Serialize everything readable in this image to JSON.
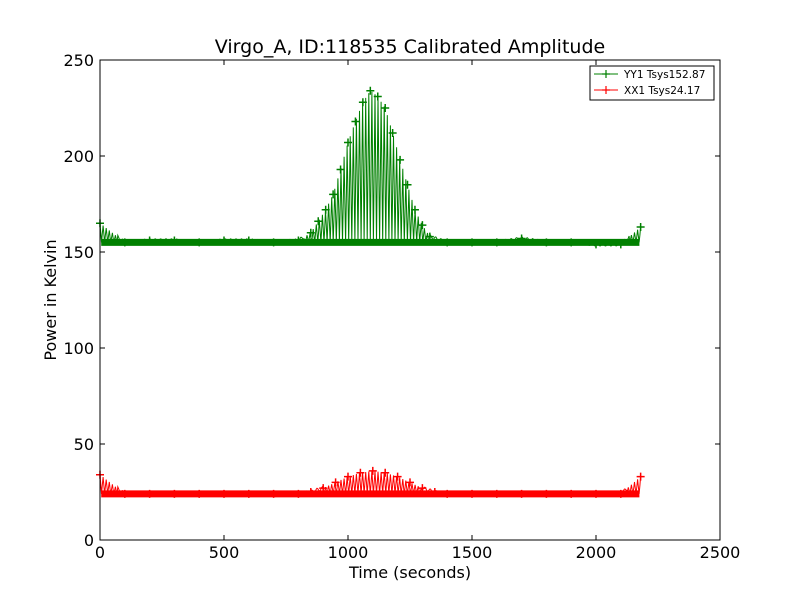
{
  "chart_data": {
    "type": "line",
    "title": "Virgo_A, ID:118535 Calibrated Amplitude",
    "xlabel": "Time (seconds)",
    "ylabel": "Power in Kelvin",
    "xlim": [
      0,
      2500
    ],
    "ylim": [
      0,
      250
    ],
    "x_ticks": [
      0,
      500,
      1000,
      1500,
      2000,
      2500
    ],
    "y_ticks": [
      0,
      50,
      100,
      150,
      200,
      250
    ],
    "x_tick_labels": [
      "0",
      "500",
      "1000",
      "1500",
      "2000",
      "2500"
    ],
    "y_tick_labels": [
      "0",
      "50",
      "100",
      "150",
      "200",
      "250"
    ],
    "grid": false,
    "legend_position": "top-right",
    "marker": "+",
    "series": [
      {
        "name": "YY1 Tsys152.87",
        "color": "#008000",
        "baseline": 155,
        "x": [
          0,
          100,
          200,
          300,
          400,
          500,
          600,
          700,
          800,
          850,
          880,
          910,
          940,
          970,
          1000,
          1030,
          1060,
          1090,
          1120,
          1150,
          1180,
          1210,
          1240,
          1270,
          1300,
          1330,
          1400,
          1500,
          1600,
          1700,
          1800,
          1900,
          2000,
          2100,
          2180
        ],
        "y": [
          165,
          155,
          156,
          156,
          155,
          156,
          156,
          155,
          156,
          160,
          166,
          172,
          180,
          193,
          207,
          218,
          228,
          234,
          231,
          225,
          212,
          198,
          185,
          172,
          164,
          158,
          155,
          155,
          155,
          157,
          155,
          155,
          154,
          154,
          163
        ]
      },
      {
        "name": "XX1 Tsys24.17",
        "color": "#ff0000",
        "baseline": 24,
        "x": [
          0,
          100,
          200,
          300,
          400,
          500,
          600,
          700,
          800,
          850,
          900,
          950,
          1000,
          1050,
          1100,
          1150,
          1200,
          1250,
          1300,
          1350,
          1400,
          1500,
          1600,
          1700,
          1800,
          1900,
          2000,
          2100,
          2180
        ],
        "y": [
          34,
          24,
          24,
          24,
          24,
          24,
          24,
          24,
          24,
          25,
          27,
          30,
          33,
          35,
          36,
          35,
          33,
          30,
          27,
          25,
          24,
          24,
          24,
          24,
          24,
          24,
          24,
          24,
          33
        ]
      }
    ]
  }
}
